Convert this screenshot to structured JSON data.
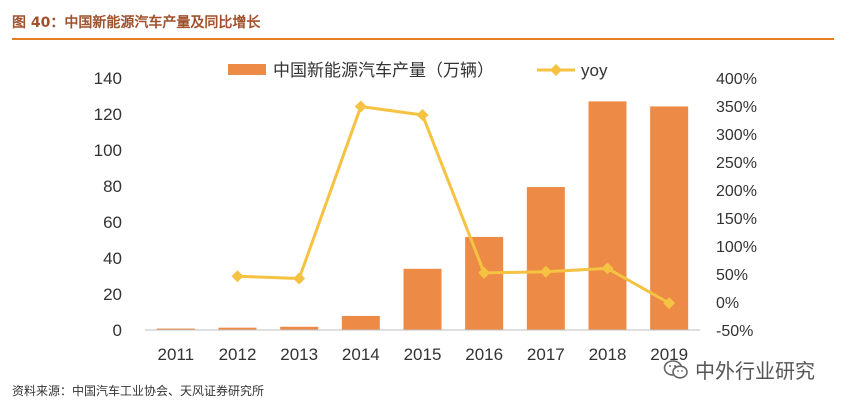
{
  "header": {
    "title": "图 40：中国新能源汽车产量及同比增长"
  },
  "footer": {
    "source": "资料来源：中国汽车工业协会、天风证券研究所"
  },
  "watermark": {
    "text": "中外行业研究",
    "icon": "wechat-icon"
  },
  "colors": {
    "bar": "#ED8A46",
    "line": "#F5C242",
    "accent": "#E67E22",
    "title": "#A0522D"
  },
  "chart_data": {
    "type": "bar",
    "categories": [
      "2011",
      "2012",
      "2013",
      "2014",
      "2015",
      "2016",
      "2017",
      "2018",
      "2019"
    ],
    "series": [
      {
        "name": "中国新能源汽车产量（万辆）",
        "type": "bar",
        "axis": "left",
        "values": [
          0.8,
          1.3,
          1.8,
          7.8,
          34.0,
          51.7,
          79.4,
          127.0,
          124.2
        ]
      },
      {
        "name": "yoy",
        "type": "line",
        "axis": "right",
        "values": [
          null,
          0.46,
          0.42,
          3.49,
          3.34,
          0.52,
          0.54,
          0.6,
          -0.02
        ]
      }
    ],
    "ylim": [
      0,
      140
    ],
    "yticks": [
      "0",
      "20",
      "40",
      "60",
      "80",
      "100",
      "120",
      "140"
    ],
    "y2lim": [
      -0.5,
      4.0
    ],
    "y2ticks": [
      "-50%",
      "0%",
      "50%",
      "100%",
      "150%",
      "200%",
      "250%",
      "300%",
      "350%",
      "400%"
    ],
    "legend": "top",
    "grid": false
  }
}
